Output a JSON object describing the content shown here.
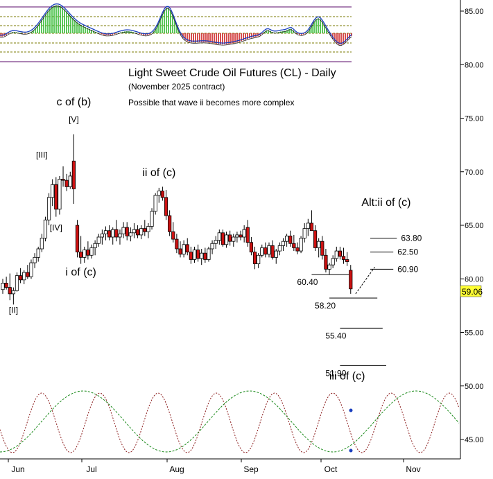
{
  "chart_data": {
    "type": "candlestick",
    "title": "Light Sweet Crude Oil Futures (CL) - Daily",
    "subtitle": "(November 2025 contract)",
    "note": "Possible that wave ii becomes more complex",
    "x_labels": [
      "Jun",
      "Jul",
      "Aug",
      "Sep",
      "Oct",
      "Nov"
    ],
    "y_ticks": [
      "85.00",
      "80.00",
      "75.00",
      "70.00",
      "65.00",
      "60.00",
      "55.00",
      "50.00",
      "45.00"
    ],
    "ylim": [
      43.6,
      86.3
    ],
    "last_price": "59.06",
    "candles": [
      {
        "o": 59.0,
        "h": 60.0,
        "l": 58.6,
        "c": 59.6
      },
      {
        "o": 59.6,
        "h": 60.2,
        "l": 59.0,
        "c": 59.2
      },
      {
        "o": 59.2,
        "h": 60.5,
        "l": 58.0,
        "c": 58.6
      },
      {
        "o": 58.6,
        "h": 59.2,
        "l": 57.6,
        "c": 58.9
      },
      {
        "o": 58.9,
        "h": 60.6,
        "l": 58.8,
        "c": 60.3
      },
      {
        "o": 60.3,
        "h": 61.0,
        "l": 59.6,
        "c": 59.9
      },
      {
        "o": 59.9,
        "h": 60.8,
        "l": 59.5,
        "c": 60.6
      },
      {
        "o": 60.6,
        "h": 61.3,
        "l": 60.0,
        "c": 60.2
      },
      {
        "o": 60.2,
        "h": 61.8,
        "l": 60.0,
        "c": 61.5
      },
      {
        "o": 61.5,
        "h": 62.4,
        "l": 61.0,
        "c": 62.0
      },
      {
        "o": 62.0,
        "h": 63.0,
        "l": 61.6,
        "c": 62.8
      },
      {
        "o": 62.8,
        "h": 64.2,
        "l": 62.5,
        "c": 63.8
      },
      {
        "o": 63.8,
        "h": 65.8,
        "l": 63.5,
        "c": 65.5
      },
      {
        "o": 65.5,
        "h": 68.0,
        "l": 65.0,
        "c": 67.6
      },
      {
        "o": 67.6,
        "h": 69.3,
        "l": 66.8,
        "c": 68.8
      },
      {
        "o": 68.8,
        "h": 69.5,
        "l": 65.8,
        "c": 66.5
      },
      {
        "o": 66.5,
        "h": 69.6,
        "l": 66.0,
        "c": 69.3
      },
      {
        "o": 69.3,
        "h": 70.5,
        "l": 68.6,
        "c": 69.2
      },
      {
        "o": 69.2,
        "h": 69.8,
        "l": 68.2,
        "c": 68.6
      },
      {
        "o": 68.6,
        "h": 70.0,
        "l": 68.4,
        "c": 69.6
      },
      {
        "o": 71.0,
        "h": 73.5,
        "l": 67.0,
        "c": 68.4
      },
      {
        "o": 65.0,
        "h": 65.5,
        "l": 62.0,
        "c": 62.5
      },
      {
        "o": 62.5,
        "h": 64.0,
        "l": 61.4,
        "c": 62.0
      },
      {
        "o": 62.0,
        "h": 63.0,
        "l": 61.5,
        "c": 62.7
      },
      {
        "o": 62.7,
        "h": 63.5,
        "l": 61.8,
        "c": 62.2
      },
      {
        "o": 62.2,
        "h": 63.2,
        "l": 61.9,
        "c": 62.9
      },
      {
        "o": 62.9,
        "h": 63.6,
        "l": 62.2,
        "c": 63.3
      },
      {
        "o": 63.3,
        "h": 64.2,
        "l": 63.0,
        "c": 63.9
      },
      {
        "o": 63.9,
        "h": 64.6,
        "l": 63.2,
        "c": 64.2
      },
      {
        "o": 64.2,
        "h": 64.9,
        "l": 63.6,
        "c": 64.5
      },
      {
        "o": 64.5,
        "h": 65.0,
        "l": 63.6,
        "c": 63.9
      },
      {
        "o": 63.9,
        "h": 64.8,
        "l": 63.2,
        "c": 64.6
      },
      {
        "o": 64.6,
        "h": 65.5,
        "l": 63.5,
        "c": 63.9
      },
      {
        "o": 63.9,
        "h": 64.6,
        "l": 63.2,
        "c": 64.2
      },
      {
        "o": 64.2,
        "h": 65.3,
        "l": 63.8,
        "c": 64.8
      },
      {
        "o": 64.8,
        "h": 65.3,
        "l": 63.6,
        "c": 64.0
      },
      {
        "o": 64.0,
        "h": 64.8,
        "l": 63.5,
        "c": 64.3
      },
      {
        "o": 64.3,
        "h": 65.2,
        "l": 63.8,
        "c": 64.6
      },
      {
        "o": 64.6,
        "h": 65.0,
        "l": 63.8,
        "c": 64.1
      },
      {
        "o": 64.1,
        "h": 65.0,
        "l": 63.7,
        "c": 64.7
      },
      {
        "o": 64.7,
        "h": 65.5,
        "l": 64.0,
        "c": 64.4
      },
      {
        "o": 64.4,
        "h": 65.2,
        "l": 63.8,
        "c": 64.9
      },
      {
        "o": 64.9,
        "h": 66.6,
        "l": 64.6,
        "c": 66.3
      },
      {
        "o": 66.3,
        "h": 68.0,
        "l": 66.0,
        "c": 67.8
      },
      {
        "o": 67.8,
        "h": 68.5,
        "l": 67.1,
        "c": 68.2
      },
      {
        "o": 68.2,
        "h": 68.6,
        "l": 67.3,
        "c": 67.6
      },
      {
        "o": 67.6,
        "h": 68.3,
        "l": 65.5,
        "c": 65.9
      },
      {
        "o": 65.9,
        "h": 66.4,
        "l": 64.0,
        "c": 64.4
      },
      {
        "o": 64.4,
        "h": 65.3,
        "l": 63.4,
        "c": 63.7
      },
      {
        "o": 63.7,
        "h": 64.2,
        "l": 62.4,
        "c": 62.8
      },
      {
        "o": 62.8,
        "h": 63.5,
        "l": 62.0,
        "c": 62.3
      },
      {
        "o": 62.3,
        "h": 63.6,
        "l": 62.0,
        "c": 63.2
      },
      {
        "o": 63.2,
        "h": 63.8,
        "l": 62.2,
        "c": 62.5
      },
      {
        "o": 62.5,
        "h": 63.0,
        "l": 61.4,
        "c": 61.8
      },
      {
        "o": 61.8,
        "h": 63.0,
        "l": 61.5,
        "c": 62.7
      },
      {
        "o": 62.7,
        "h": 63.2,
        "l": 61.6,
        "c": 61.9
      },
      {
        "o": 61.9,
        "h": 62.8,
        "l": 61.3,
        "c": 62.4
      },
      {
        "o": 62.4,
        "h": 62.9,
        "l": 61.5,
        "c": 61.8
      },
      {
        "o": 61.8,
        "h": 63.0,
        "l": 61.6,
        "c": 62.8
      },
      {
        "o": 62.8,
        "h": 63.6,
        "l": 62.3,
        "c": 63.3
      },
      {
        "o": 63.3,
        "h": 64.0,
        "l": 62.8,
        "c": 63.6
      },
      {
        "o": 63.6,
        "h": 64.6,
        "l": 63.2,
        "c": 64.3
      },
      {
        "o": 64.3,
        "h": 64.6,
        "l": 63.0,
        "c": 63.2
      },
      {
        "o": 63.2,
        "h": 64.4,
        "l": 62.9,
        "c": 64.1
      },
      {
        "o": 64.1,
        "h": 64.5,
        "l": 63.1,
        "c": 63.5
      },
      {
        "o": 63.5,
        "h": 64.2,
        "l": 63.0,
        "c": 63.9
      },
      {
        "o": 63.9,
        "h": 64.4,
        "l": 63.4,
        "c": 64.1
      },
      {
        "o": 64.1,
        "h": 64.5,
        "l": 63.6,
        "c": 63.9
      },
      {
        "o": 63.9,
        "h": 65.0,
        "l": 63.4,
        "c": 64.6
      },
      {
        "o": 64.8,
        "h": 65.5,
        "l": 63.0,
        "c": 63.4
      },
      {
        "o": 63.4,
        "h": 63.9,
        "l": 62.2,
        "c": 62.5
      },
      {
        "o": 62.5,
        "h": 63.0,
        "l": 60.9,
        "c": 61.4
      },
      {
        "o": 61.4,
        "h": 62.4,
        "l": 61.0,
        "c": 62.2
      },
      {
        "o": 62.2,
        "h": 63.2,
        "l": 62.0,
        "c": 62.9
      },
      {
        "o": 62.9,
        "h": 63.4,
        "l": 62.0,
        "c": 62.3
      },
      {
        "o": 62.3,
        "h": 63.4,
        "l": 62.0,
        "c": 63.1
      },
      {
        "o": 63.1,
        "h": 63.6,
        "l": 61.8,
        "c": 62.0
      },
      {
        "o": 62.0,
        "h": 62.8,
        "l": 61.4,
        "c": 62.6
      },
      {
        "o": 62.6,
        "h": 63.4,
        "l": 62.2,
        "c": 63.1
      },
      {
        "o": 63.1,
        "h": 63.8,
        "l": 62.6,
        "c": 63.5
      },
      {
        "o": 63.5,
        "h": 64.2,
        "l": 63.0,
        "c": 64.0
      },
      {
        "o": 64.0,
        "h": 64.5,
        "l": 63.0,
        "c": 63.3
      },
      {
        "o": 63.3,
        "h": 64.1,
        "l": 62.6,
        "c": 62.9
      },
      {
        "o": 62.9,
        "h": 63.4,
        "l": 62.3,
        "c": 62.6
      },
      {
        "o": 62.6,
        "h": 64.0,
        "l": 62.4,
        "c": 63.8
      },
      {
        "o": 63.8,
        "h": 65.2,
        "l": 63.4,
        "c": 64.7
      },
      {
        "o": 64.7,
        "h": 65.6,
        "l": 64.0,
        "c": 65.2
      },
      {
        "o": 65.2,
        "h": 66.4,
        "l": 64.8,
        "c": 64.5
      },
      {
        "o": 64.5,
        "h": 65.0,
        "l": 62.6,
        "c": 62.9
      },
      {
        "o": 62.9,
        "h": 63.8,
        "l": 62.0,
        "c": 63.5
      },
      {
        "o": 63.5,
        "h": 64.0,
        "l": 61.8,
        "c": 62.2
      },
      {
        "o": 62.2,
        "h": 62.8,
        "l": 60.6,
        "c": 60.9
      },
      {
        "o": 60.9,
        "h": 61.5,
        "l": 60.4,
        "c": 61.3
      },
      {
        "o": 61.3,
        "h": 62.2,
        "l": 61.0,
        "c": 61.9
      },
      {
        "o": 61.9,
        "h": 63.0,
        "l": 61.6,
        "c": 62.6
      },
      {
        "o": 62.6,
        "h": 63.0,
        "l": 61.8,
        "c": 62.1
      },
      {
        "o": 62.1,
        "h": 62.9,
        "l": 61.4,
        "c": 61.8
      },
      {
        "o": 61.8,
        "h": 62.5,
        "l": 61.2,
        "c": 61.6
      },
      {
        "o": 60.8,
        "h": 61.3,
        "l": 58.6,
        "c": 59.06
      }
    ],
    "wave_labels": [
      {
        "text": "[II]",
        "x": 3,
        "y": 56.8
      },
      {
        "text": "[III]",
        "x": 11,
        "y": 71.3
      },
      {
        "text": "[IV]",
        "x": 15,
        "y": 64.5
      },
      {
        "text": "[V]",
        "x": 20,
        "y": 74.6
      },
      {
        "text": "c of (b)",
        "x": 20,
        "y": 76.2
      },
      {
        "text": "i of (c)",
        "x": 22,
        "y": 60.3
      },
      {
        "text": "ii of (c)",
        "x": 44,
        "y": 69.6
      },
      {
        "text": "Alt:ii of (c)",
        "x": 108,
        "y": 66.8
      },
      {
        "text": "iii of (c)",
        "x": 97,
        "y": 50.6
      }
    ],
    "targets": [
      {
        "label": "63.80",
        "value": 63.8,
        "x1": 103.5,
        "x2": 111,
        "label_side": "right"
      },
      {
        "label": "62.50",
        "value": 62.5,
        "x1": 103.5,
        "x2": 110,
        "label_side": "right"
      },
      {
        "label": "60.90",
        "value": 60.9,
        "x1": 103.5,
        "x2": 110,
        "label_side": "right"
      },
      {
        "label": "60.40",
        "value": 60.4,
        "x1": 87,
        "x2": 97.5,
        "label_side": "left"
      },
      {
        "label": "58.20",
        "value": 58.2,
        "x1": 92,
        "x2": 105.5,
        "label_side": "left"
      },
      {
        "label": "55.40",
        "value": 55.4,
        "x1": 95,
        "x2": 107,
        "label_side": "left"
      },
      {
        "label": "51.90",
        "value": 51.9,
        "x1": 95,
        "x2": 108,
        "label_side": "left"
      }
    ]
  }
}
